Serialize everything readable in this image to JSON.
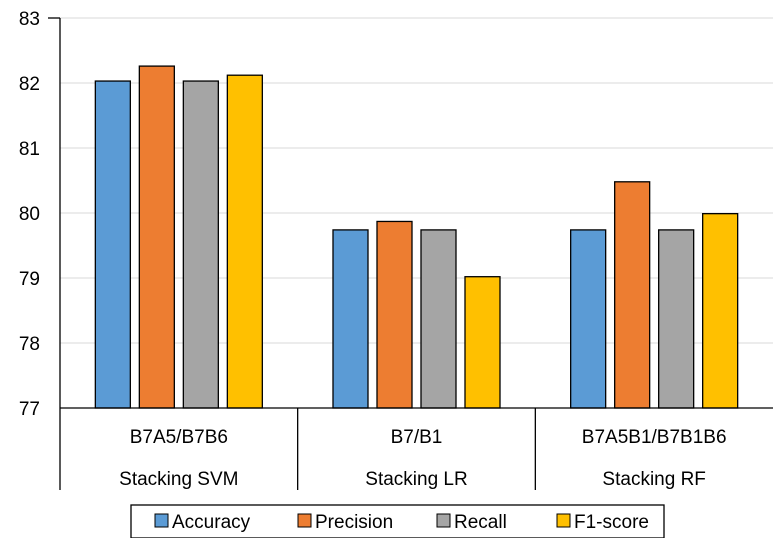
{
  "chart_data": {
    "type": "bar",
    "categories": [
      "B7A5/B7B6",
      "B7/B1",
      "B7A5B1/B7B1B6"
    ],
    "groups": [
      "Stacking SVM",
      "Stacking LR",
      "Stacking RF"
    ],
    "series": [
      {
        "name": "Accuracy",
        "color": "#5B9BD5",
        "values": [
          82.03,
          79.74,
          79.74
        ]
      },
      {
        "name": "Precision",
        "color": "#ED7D31",
        "values": [
          82.26,
          79.87,
          80.48
        ]
      },
      {
        "name": "Recall",
        "color": "#A5A5A5",
        "values": [
          82.03,
          79.74,
          79.74
        ]
      },
      {
        "name": "F1-score",
        "color": "#FFC000",
        "values": [
          82.12,
          79.02,
          79.99
        ]
      }
    ],
    "ylim": [
      77,
      83
    ],
    "yticks": [
      "77",
      "78",
      "79",
      "80",
      "81",
      "82",
      "83"
    ],
    "grid": true,
    "legend_position": "bottom"
  }
}
